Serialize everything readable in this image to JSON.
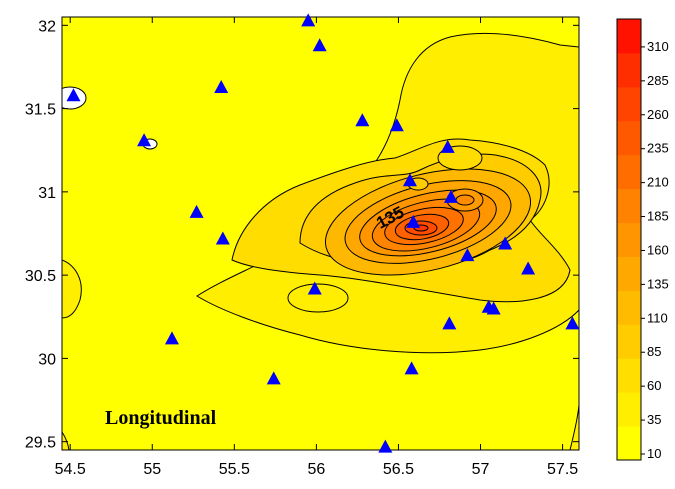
{
  "chart_data": {
    "type": "contour",
    "title": "Longitudinal",
    "xlabel": "",
    "ylabel": "",
    "xlim": [
      54.45,
      57.6
    ],
    "ylim": [
      29.45,
      32.05
    ],
    "x_ticks": [
      "54.5",
      "55",
      "55.5",
      "56",
      "56.5",
      "57",
      "57.5"
    ],
    "y_ticks": [
      "29.5",
      "30",
      "30.5",
      "31",
      "31.5",
      "32"
    ],
    "colorbar": {
      "levels": [
        "10",
        "35",
        "60",
        "85",
        "110",
        "135",
        "160",
        "185",
        "210",
        "235",
        "260",
        "285",
        "310"
      ],
      "colors": [
        "#ffff00",
        "#ffee00",
        "#ffde00",
        "#ffcc00",
        "#ffbb00",
        "#ffa800",
        "#ff9500",
        "#ff8200",
        "#ff6d00",
        "#ff5900",
        "#ff4400",
        "#ff2e00",
        "#ff1200"
      ]
    },
    "contour_label": "135",
    "stations": [
      {
        "x": 54.52,
        "y": 31.58
      },
      {
        "x": 54.95,
        "y": 31.31
      },
      {
        "x": 55.42,
        "y": 31.63
      },
      {
        "x": 55.95,
        "y": 32.03
      },
      {
        "x": 56.02,
        "y": 31.88
      },
      {
        "x": 56.28,
        "y": 31.43
      },
      {
        "x": 56.49,
        "y": 31.4
      },
      {
        "x": 56.8,
        "y": 31.27
      },
      {
        "x": 56.57,
        "y": 31.07
      },
      {
        "x": 56.82,
        "y": 30.97
      },
      {
        "x": 56.59,
        "y": 30.82
      },
      {
        "x": 55.27,
        "y": 30.88
      },
      {
        "x": 55.43,
        "y": 30.72
      },
      {
        "x": 56.92,
        "y": 30.62
      },
      {
        "x": 57.15,
        "y": 30.69
      },
      {
        "x": 57.29,
        "y": 30.54
      },
      {
        "x": 55.99,
        "y": 30.42
      },
      {
        "x": 57.05,
        "y": 30.31
      },
      {
        "x": 57.08,
        "y": 30.3
      },
      {
        "x": 56.81,
        "y": 30.21
      },
      {
        "x": 57.56,
        "y": 30.21
      },
      {
        "x": 55.12,
        "y": 30.12
      },
      {
        "x": 56.58,
        "y": 29.94
      },
      {
        "x": 55.74,
        "y": 29.88
      },
      {
        "x": 56.42,
        "y": 29.47
      }
    ],
    "marker_color": "#0000ff",
    "grid": false
  }
}
